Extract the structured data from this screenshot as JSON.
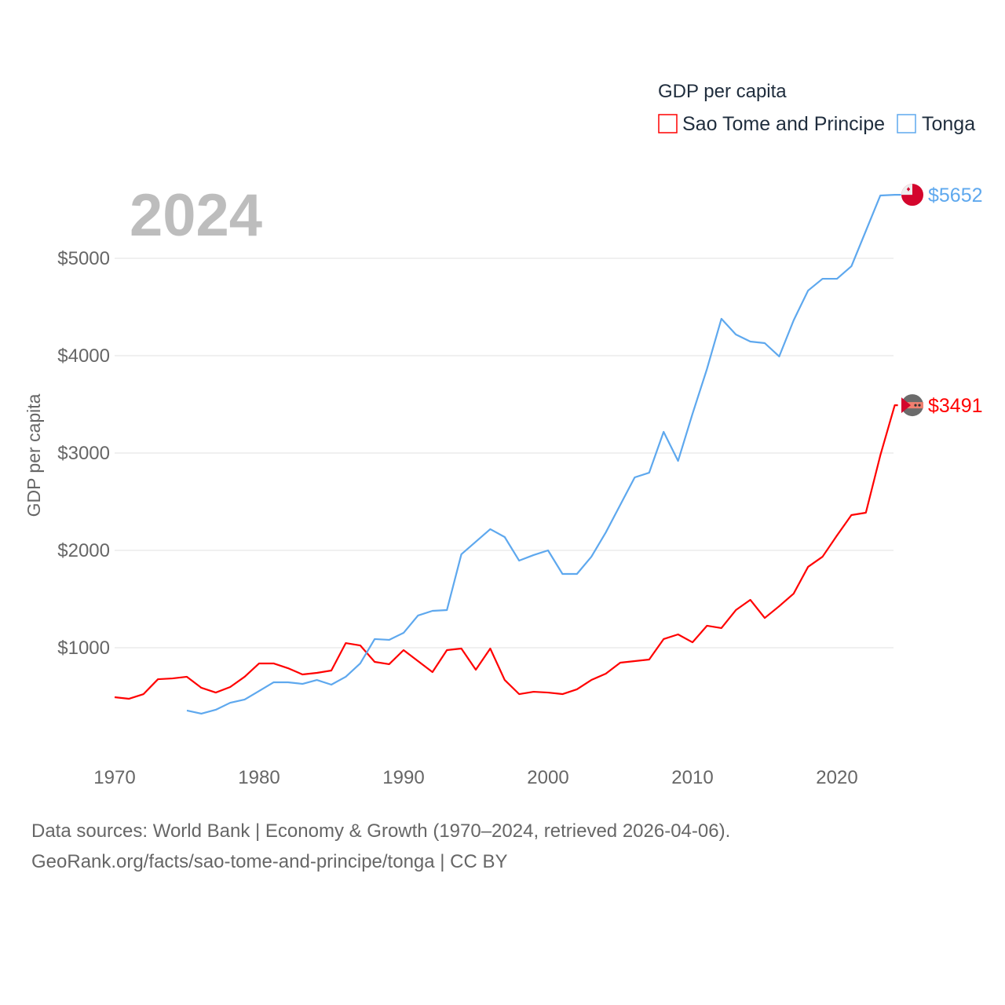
{
  "chart_data": {
    "type": "line",
    "title": "GDP per capita",
    "year_label": "2024",
    "xlabel": "",
    "ylabel": "GDP per capita",
    "xlim": [
      1970,
      2024
    ],
    "ylim": [
      0,
      5700
    ],
    "grid": true,
    "legend_placement": "top-right",
    "x_ticks": [
      1970,
      1980,
      1990,
      2000,
      2010,
      2020
    ],
    "x_tick_labels": [
      "1970",
      "1980",
      "1990",
      "2000",
      "2010",
      "2020"
    ],
    "y_ticks": [
      1000,
      2000,
      3000,
      4000,
      5000
    ],
    "y_tick_labels": [
      "$1000",
      "$2000",
      "$3000",
      "$4000",
      "$5000"
    ],
    "series": [
      {
        "name": "Sao Tome and Principe",
        "color": "#ff0000",
        "end_label": "$3491",
        "start_year": 1970,
        "values": [
          492,
          476,
          524,
          677,
          685,
          702,
          589,
          540,
          597,
          702,
          839,
          839,
          790,
          726,
          742,
          766,
          1048,
          1024,
          855,
          831,
          976,
          863,
          750,
          976,
          992,
          774,
          992,
          669,
          524,
          548,
          540,
          524,
          573,
          669,
          734,
          847,
          863,
          879,
          1089,
          1137,
          1056,
          1226,
          1202,
          1387,
          1492,
          1306,
          1427,
          1556,
          1831,
          1935,
          2153,
          2363,
          2387,
          2976,
          3491
        ]
      },
      {
        "name": "Tonga",
        "color": "#5ea8ee",
        "end_label": "$5652",
        "start_year": 1975,
        "values": [
          355,
          323,
          363,
          435,
          468,
          556,
          645,
          645,
          629,
          669,
          621,
          702,
          839,
          1089,
          1081,
          1153,
          1331,
          1379,
          1387,
          1960,
          2089,
          2218,
          2137,
          1895,
          1952,
          2000,
          1758,
          1758,
          1935,
          2185,
          2468,
          2750,
          2798,
          3218,
          2919,
          3403,
          3863,
          4379,
          4218,
          4145,
          4129,
          3992,
          4363,
          4669,
          4790,
          4790,
          4919,
          5282,
          5645,
          5652
        ]
      }
    ]
  },
  "footer": {
    "line1": "Data sources: World Bank | Economy & Growth (1970–2024, retrieved 2026-04-06).",
    "line2": "GeoRank.org/facts/sao-tome-and-principe/tonga | CC BY"
  }
}
